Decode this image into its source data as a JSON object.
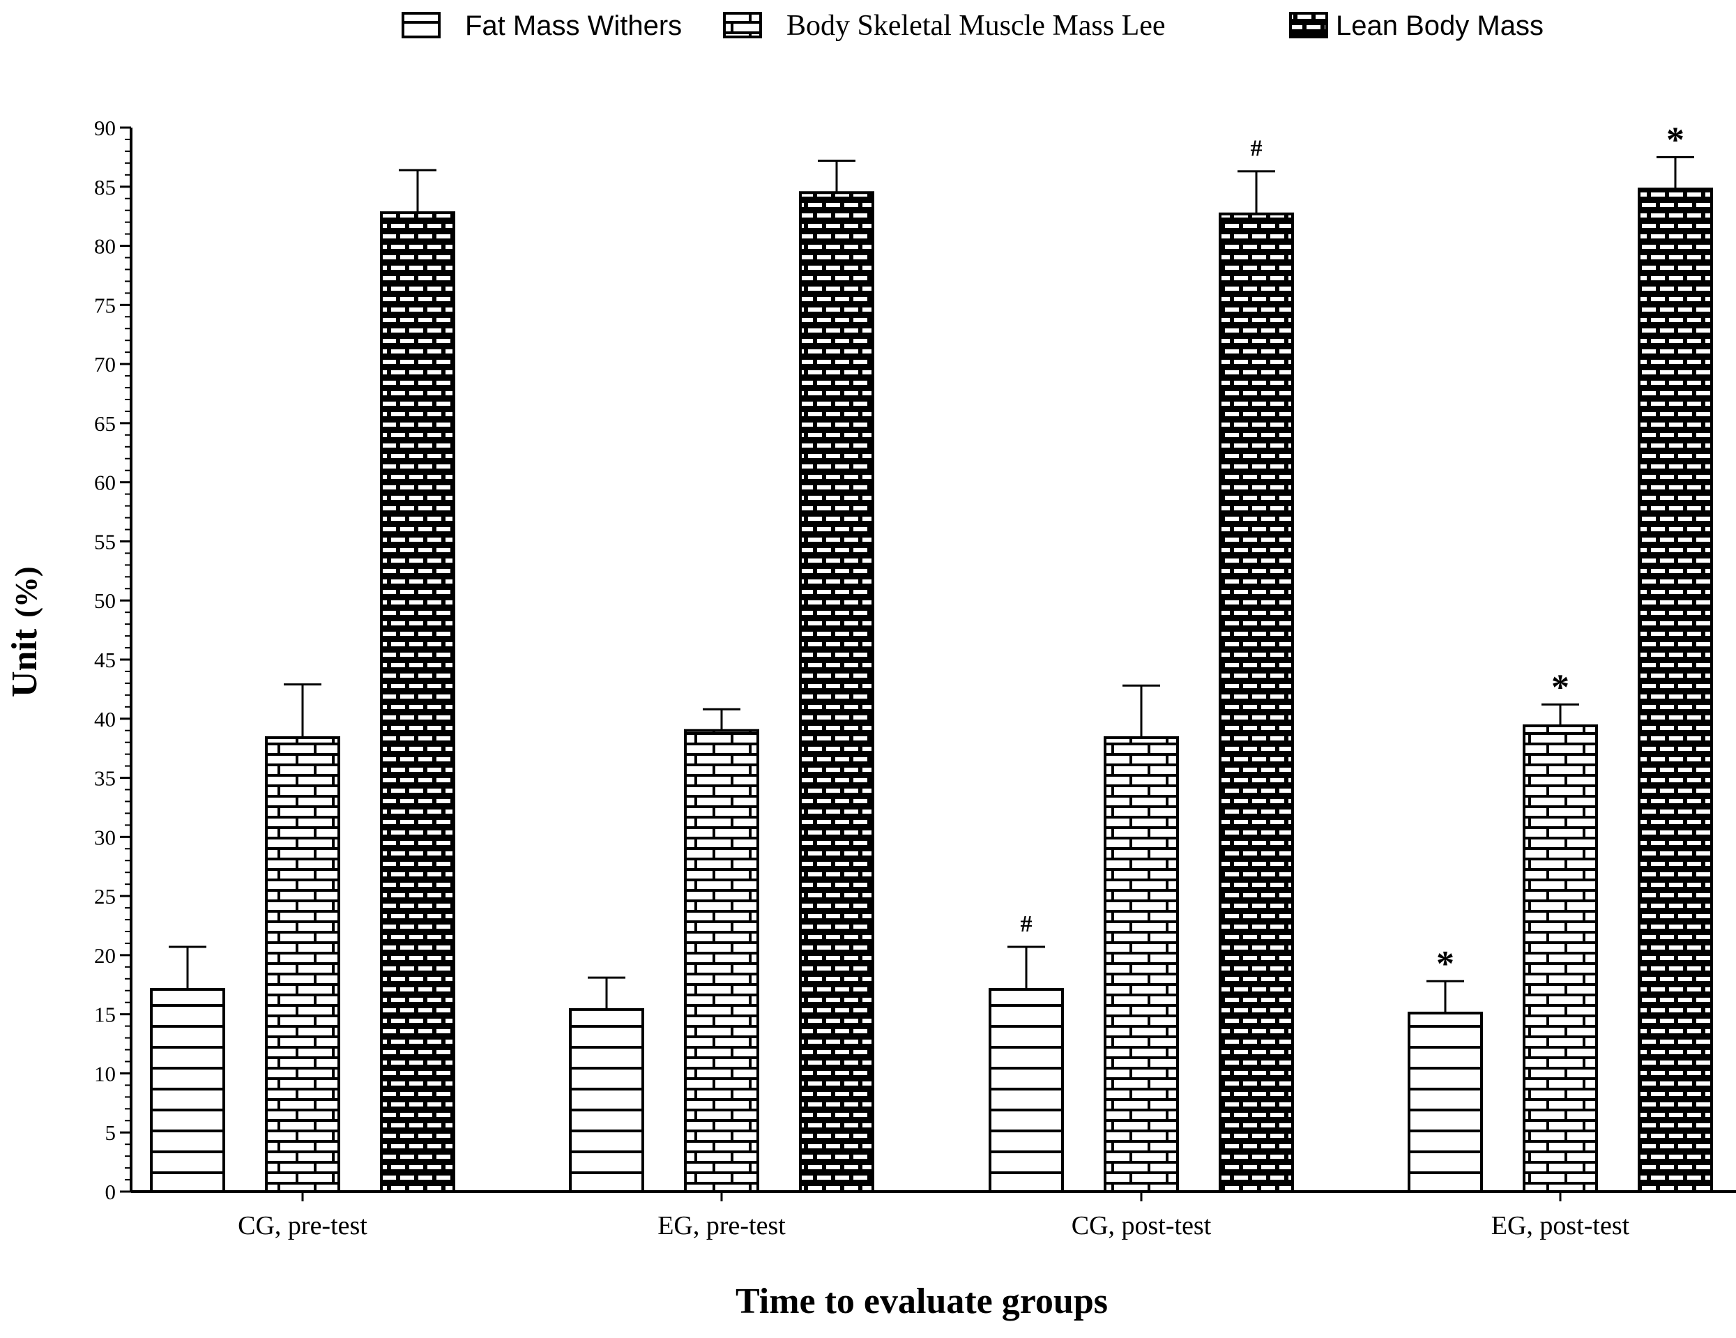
{
  "chart_data": {
    "type": "bar",
    "title": "",
    "xlabel": "Time to evaluate groups",
    "ylabel": "Unit",
    "ylabel_unit": "(%)",
    "ylim": [
      0,
      90
    ],
    "major_step": 5,
    "minor_step": 1,
    "categories": [
      "CG, pre-test",
      "EG, pre-test",
      "CG, post-test",
      "EG, post-test"
    ],
    "legend_position": "top-center",
    "series": [
      {
        "name": "Fat Mass Withers",
        "pattern": "horizontal-lines",
        "values": [
          17.1,
          15.4,
          17.1,
          15.1
        ],
        "errors": [
          3.6,
          2.7,
          3.6,
          2.7
        ],
        "annotations": [
          "",
          "",
          "#",
          "*"
        ]
      },
      {
        "name": "Body Skeletal Muscle Mass Lee",
        "pattern": "brick-light",
        "values": [
          38.4,
          39.0,
          38.4,
          39.4
        ],
        "errors": [
          4.5,
          1.8,
          4.4,
          1.8
        ],
        "annotations": [
          "",
          "",
          "",
          "*"
        ]
      },
      {
        "name": "Lean Body Mass",
        "pattern": "brick-dark",
        "values": [
          82.8,
          84.5,
          82.7,
          84.8
        ],
        "errors": [
          3.6,
          2.7,
          3.6,
          2.7
        ],
        "annotations": [
          "",
          "",
          "#",
          "*"
        ]
      }
    ]
  },
  "colors": {
    "ink": "#000000",
    "fill": "#ffffff"
  }
}
